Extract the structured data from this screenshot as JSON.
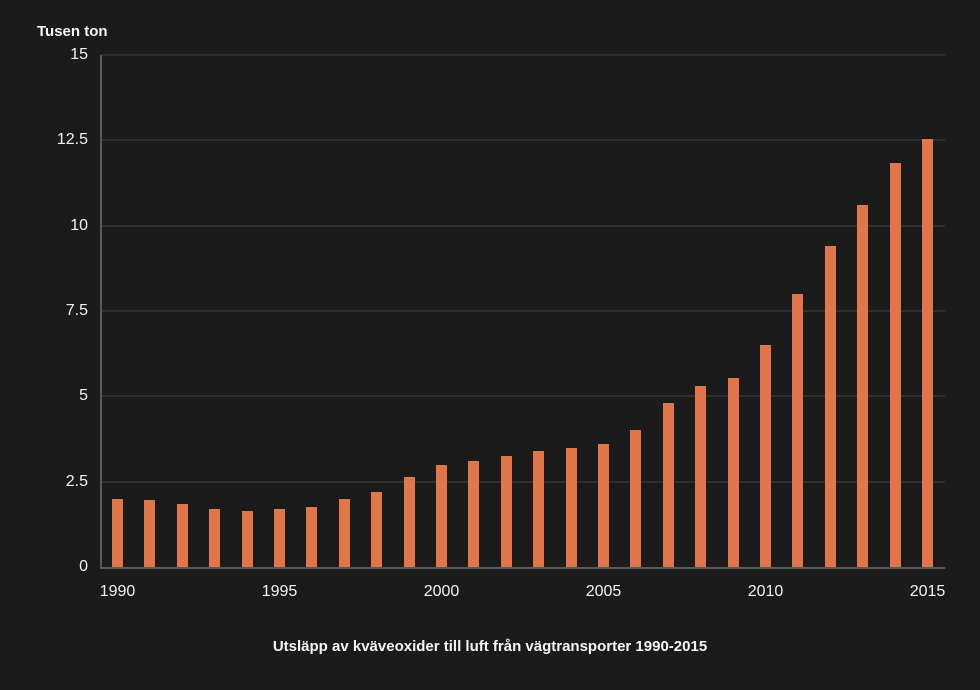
{
  "colors": {
    "background": "#1b1b1b",
    "bar": "#e0764a",
    "gridline": "#2e2e30",
    "axis": "#5a5a5c",
    "text": "#f2f2f2"
  },
  "chart_data": {
    "type": "bar",
    "title": "Utsläpp av kväveoxider till luft från vägtransporter 1990-2015",
    "ylabel": "Tusen ton",
    "xlabel": "",
    "ylim": [
      0,
      15
    ],
    "grid": true,
    "legend_position": "none",
    "yticks": [
      0,
      2.5,
      5,
      7.5,
      10,
      12.5,
      15
    ],
    "ytick_labels": [
      "0",
      "2.5",
      "5",
      "7.5",
      "10",
      "12.5",
      "15"
    ],
    "xtick_labels": [
      "1990",
      "1995",
      "2000",
      "2005",
      "2010",
      "2015"
    ],
    "categories": [
      1990,
      1991,
      1992,
      1993,
      1994,
      1995,
      1996,
      1997,
      1998,
      1999,
      2000,
      2001,
      2002,
      2003,
      2004,
      2005,
      2006,
      2007,
      2008,
      2009,
      2010,
      2011,
      2012,
      2013,
      2014,
      2015
    ],
    "values": [
      2.0,
      1.95,
      1.85,
      1.7,
      1.65,
      1.7,
      1.75,
      2.0,
      2.2,
      2.65,
      3.0,
      3.1,
      3.25,
      3.4,
      3.5,
      3.6,
      4.0,
      4.8,
      5.3,
      5.55,
      6.5,
      8.0,
      9.4,
      10.6,
      11.85,
      12.55
    ]
  }
}
